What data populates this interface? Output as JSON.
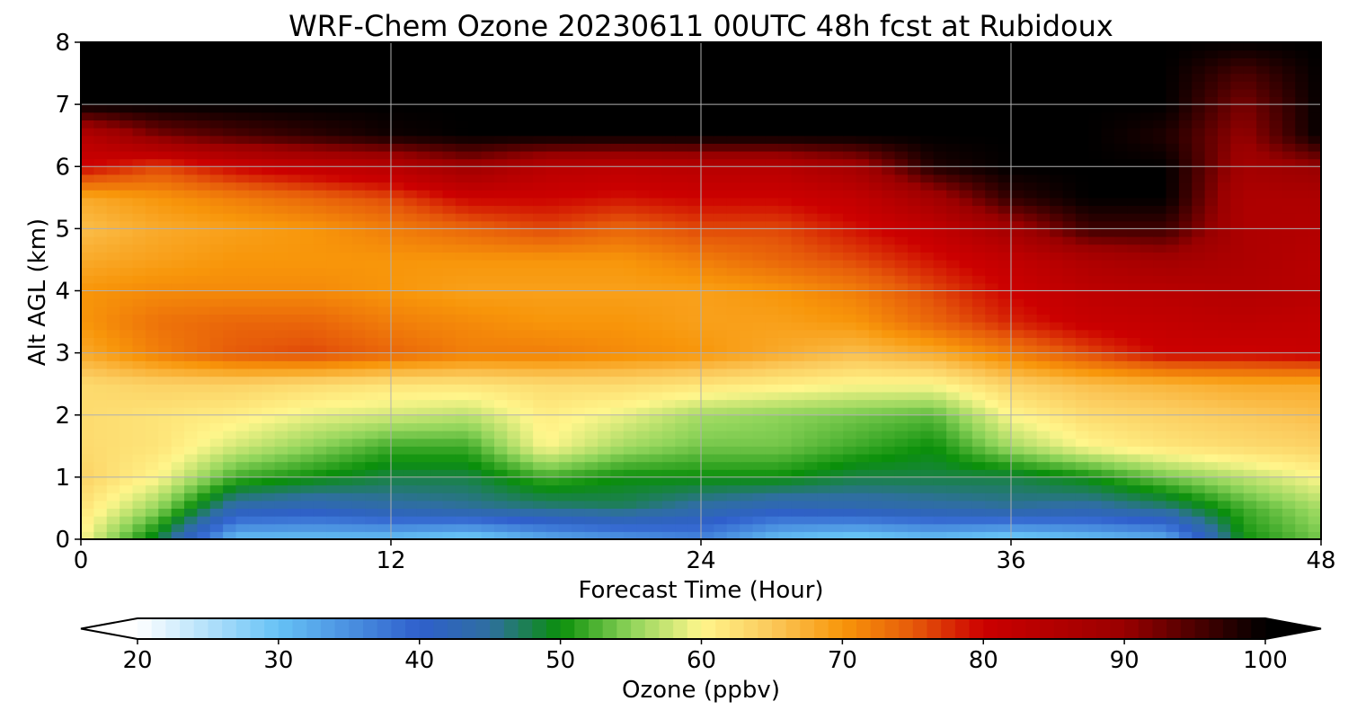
{
  "chart_data": {
    "type": "heatmap",
    "title": "WRF-Chem Ozone  20230611 00UTC 48h fcst at Rubidoux",
    "xlabel": "Forecast Time (Hour)",
    "ylabel": "Alt AGL (km)",
    "xlim": [
      0,
      48
    ],
    "ylim": [
      0,
      8
    ],
    "xticks": [
      0,
      12,
      24,
      36,
      48
    ],
    "yticks": [
      0,
      1,
      2,
      3,
      4,
      5,
      6,
      7,
      8
    ],
    "grid": true,
    "x_hours": [
      0,
      3,
      6,
      9,
      12,
      15,
      18,
      21,
      24,
      27,
      30,
      33,
      36,
      39,
      42,
      45,
      48
    ],
    "z_km": [
      0,
      0.5,
      1,
      1.5,
      2,
      2.5,
      3,
      3.5,
      4,
      4.5,
      5,
      5.5,
      6,
      6.5,
      7,
      7.5,
      8
    ],
    "values_ppbv": [
      [
        60,
        48,
        30,
        30,
        30,
        28,
        32,
        34,
        36,
        30,
        28,
        30,
        28,
        30,
        32,
        50,
        54
      ],
      [
        62,
        55,
        43,
        42,
        44,
        45,
        46,
        47,
        44,
        42,
        43,
        44,
        45,
        44,
        46,
        52,
        56
      ],
      [
        64,
        60,
        52,
        50,
        48,
        48,
        52,
        50,
        50,
        50,
        48,
        48,
        48,
        50,
        54,
        57,
        60
      ],
      [
        63,
        62,
        58,
        55,
        52,
        52,
        60,
        56,
        54,
        54,
        52,
        50,
        56,
        60,
        62,
        63,
        64
      ],
      [
        63,
        62,
        61,
        59,
        58,
        57,
        61,
        59,
        56,
        55,
        54,
        53,
        60,
        63,
        64,
        65,
        66
      ],
      [
        63,
        64,
        64,
        63,
        62,
        62,
        63,
        63,
        62,
        61,
        60,
        60,
        64,
        66,
        67,
        68,
        68
      ],
      [
        68,
        72,
        75,
        76,
        74,
        72,
        72,
        71,
        70,
        68,
        66,
        68,
        72,
        76,
        80,
        80,
        81
      ],
      [
        70,
        73,
        74,
        74,
        72,
        71,
        70,
        70,
        69,
        69,
        70,
        74,
        78,
        81,
        82,
        83,
        82
      ],
      [
        70,
        71,
        71,
        71,
        70,
        69,
        69,
        69,
        69,
        70,
        72,
        76,
        80,
        83,
        84,
        85,
        84
      ],
      [
        68,
        69,
        70,
        70,
        70,
        70,
        70,
        70,
        72,
        74,
        76,
        79,
        82,
        86,
        88,
        86,
        84
      ],
      [
        66,
        68,
        69,
        70,
        72,
        74,
        76,
        74,
        76,
        76,
        79,
        82,
        88,
        96,
        96,
        86,
        85
      ],
      [
        68,
        70,
        72,
        74,
        76,
        80,
        80,
        79,
        80,
        80,
        82,
        88,
        97,
        100,
        100,
        86,
        86
      ],
      [
        80,
        76,
        80,
        82,
        84,
        89,
        84,
        83,
        84,
        84,
        88,
        98,
        100,
        100,
        100,
        88,
        90
      ],
      [
        84,
        92,
        95,
        97,
        99,
        100,
        100,
        100,
        100,
        100,
        100,
        100,
        100,
        100,
        98,
        90,
        100
      ],
      [
        100,
        100,
        100,
        100,
        100,
        100,
        100,
        100,
        100,
        100,
        100,
        100,
        100,
        100,
        100,
        92,
        100
      ],
      [
        100,
        100,
        100,
        100,
        100,
        100,
        100,
        100,
        100,
        100,
        100,
        100,
        100,
        100,
        100,
        95,
        100
      ],
      [
        100,
        100,
        100,
        100,
        100,
        100,
        100,
        100,
        100,
        100,
        100,
        100,
        100,
        100,
        100,
        100,
        100
      ]
    ],
    "colorbar": {
      "label": "Ozone  (ppbv)",
      "ticks": [
        20,
        30,
        40,
        50,
        60,
        70,
        80,
        90,
        100
      ],
      "range": [
        20,
        100
      ],
      "extend": "both",
      "color_stops": [
        {
          "v": 20,
          "c": "#ffffff"
        },
        {
          "v": 30,
          "c": "#66c2f5"
        },
        {
          "v": 40,
          "c": "#2f5fcc"
        },
        {
          "v": 45,
          "c": "#2f6fa0"
        },
        {
          "v": 50,
          "c": "#0a8f0a"
        },
        {
          "v": 55,
          "c": "#8fd45a"
        },
        {
          "v": 60,
          "c": "#fff68c"
        },
        {
          "v": 65,
          "c": "#fbc85a"
        },
        {
          "v": 70,
          "c": "#f8960a"
        },
        {
          "v": 75,
          "c": "#e65a0a"
        },
        {
          "v": 80,
          "c": "#cc0000"
        },
        {
          "v": 90,
          "c": "#990000"
        },
        {
          "v": 100,
          "c": "#000000"
        }
      ]
    }
  }
}
